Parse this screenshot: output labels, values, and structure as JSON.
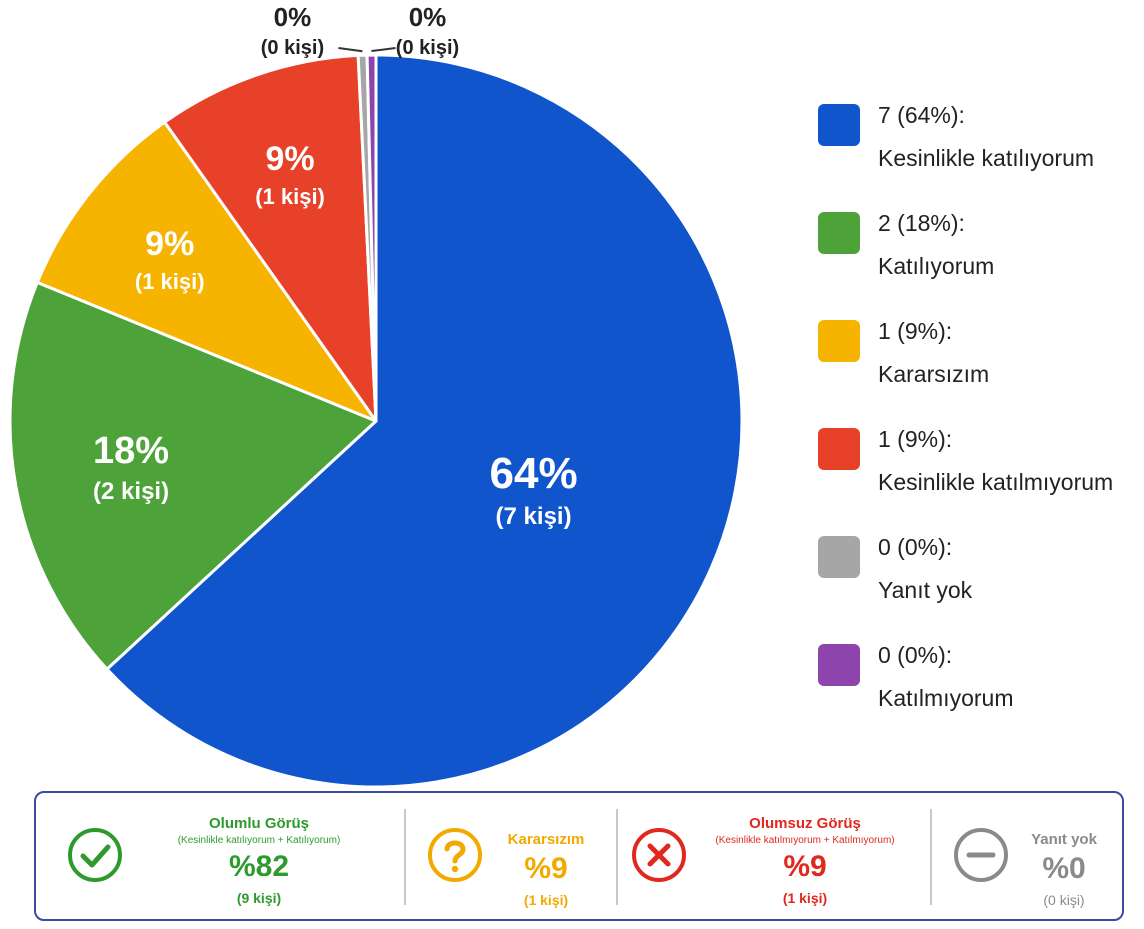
{
  "chart_data": {
    "type": "pie",
    "slices": [
      {
        "label": "Kesinlikle katılıyorum",
        "value": 7,
        "percent_label": "64%",
        "count_label": "(7 kişi)",
        "legend_value": "7 (64%):",
        "color": "#1155cc"
      },
      {
        "label": "Katılıyorum",
        "value": 2,
        "percent_label": "18%",
        "count_label": "(2 kişi)",
        "legend_value": "2 (18%):",
        "color": "#4da33a"
      },
      {
        "label": "Kararsızım",
        "value": 1,
        "percent_label": "9%",
        "count_label": "(1 kişi)",
        "legend_value": "1 (9%):",
        "color": "#f6b400"
      },
      {
        "label": "Kesinlikle katılmıyorum",
        "value": 1,
        "percent_label": "9%",
        "count_label": "(1 kişi)",
        "legend_value": "1 (9%):",
        "color": "#e8412a"
      },
      {
        "label": "Yanıt yok",
        "value": 0,
        "percent_label": "0%",
        "count_label": "(0 kişi)",
        "legend_value": "0 (0%):",
        "color": "#a6a6a6"
      },
      {
        "label": "Katılmıyorum",
        "value": 0,
        "percent_label": "0%",
        "count_label": "(0 kişi)",
        "legend_value": "0 (0%):",
        "color": "#8e44ad"
      }
    ],
    "legend_position": "right"
  },
  "summary": {
    "positive": {
      "title": "Olumlu Görüş",
      "subtitle": "(Kesinlikle katılıyorum + Katılıyorum)",
      "value": "%82",
      "count": "(9 kişi)",
      "color": "#2e9a2e",
      "icon": "check-circle-icon"
    },
    "neutral": {
      "title": "Kararsızım",
      "value": "%9",
      "count": "(1 kişi)",
      "color": "#f2a900",
      "icon": "question-circle-icon"
    },
    "negative": {
      "title": "Olumsuz Görüş",
      "subtitle": "(Kesinlikle katılmıyorum + Katılmıyorum)",
      "value": "%9",
      "count": "(1 kişi)",
      "color": "#e0281e",
      "icon": "x-circle-icon"
    },
    "none": {
      "title": "Yanıt yok",
      "value": "%0",
      "count": "(0 kişi)",
      "color": "#8a8a8a",
      "icon": "minus-circle-icon"
    }
  }
}
